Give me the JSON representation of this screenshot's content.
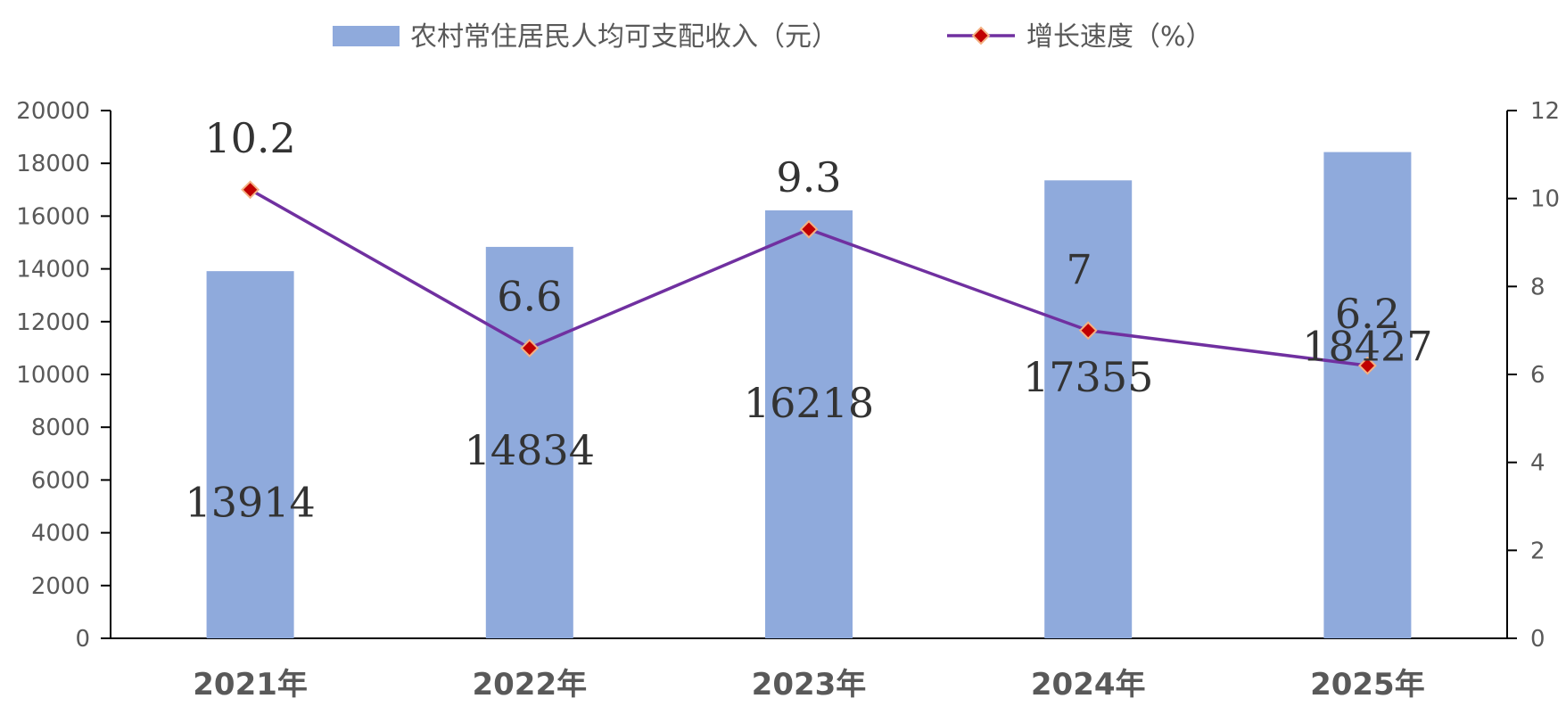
{
  "chart_data": {
    "type": "bar",
    "categories": [
      "2021年",
      "2022年",
      "2023年",
      "2024年",
      "2025年"
    ],
    "series": [
      {
        "name": "农村常住居民人均可支配收入（元）",
        "type": "bar",
        "axis": "left",
        "values": [
          13914,
          14834,
          16218,
          17355,
          18427
        ],
        "labels": [
          "13914",
          "14834",
          "16218",
          "17355",
          "18427"
        ]
      },
      {
        "name": "增长速度（%）",
        "type": "line",
        "axis": "right",
        "values": [
          10.2,
          6.6,
          9.3,
          7,
          6.2
        ],
        "labels": [
          "10.2",
          "6.6",
          "9.3",
          "7",
          "6.2"
        ]
      }
    ],
    "left_axis": {
      "ylim": [
        0,
        20000
      ],
      "ticks": [
        "0",
        "2000",
        "4000",
        "6000",
        "8000",
        "10000",
        "12000",
        "14000",
        "16000",
        "18000",
        "20000"
      ]
    },
    "right_axis": {
      "ylim": [
        0,
        12
      ],
      "ticks": [
        "0",
        "2",
        "4",
        "6",
        "8",
        "10",
        "12"
      ]
    },
    "legend_position": "top-center",
    "grid": false,
    "colors": {
      "bar": "#8FAADC",
      "line": "#7030A0",
      "marker_fill": "#C00000",
      "marker_stroke": "#F4B183",
      "axis": "#000000",
      "text": "#595959",
      "data_label": "#333333"
    }
  }
}
